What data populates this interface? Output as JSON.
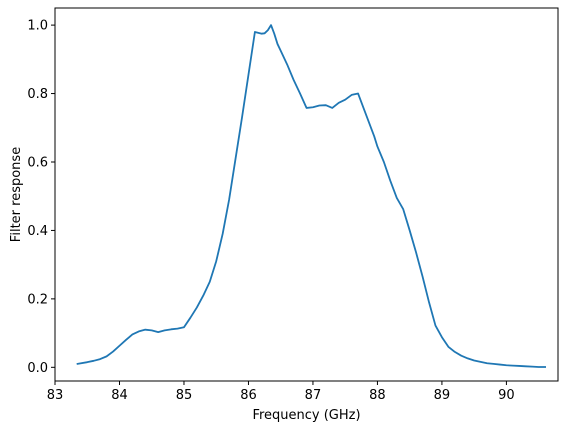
{
  "chart_data": {
    "type": "line",
    "title": "",
    "xlabel": "Frequency (GHz)",
    "ylabel": "Filter response",
    "xlim": [
      83.0,
      90.8
    ],
    "ylim": [
      -0.04,
      1.05
    ],
    "xticks": [
      83,
      84,
      85,
      86,
      87,
      88,
      89,
      90
    ],
    "xtick_labels": [
      "83",
      "84",
      "85",
      "86",
      "87",
      "88",
      "89",
      "90"
    ],
    "yticks": [
      0.0,
      0.2,
      0.4,
      0.6,
      0.8,
      1.0
    ],
    "ytick_labels": [
      "0.0",
      "0.2",
      "0.4",
      "0.6",
      "0.8",
      "1.0"
    ],
    "grid": false,
    "series": [
      {
        "color": "#1f77b4",
        "x": [
          83.35,
          83.5,
          83.6,
          83.7,
          83.8,
          83.9,
          84.0,
          84.1,
          84.2,
          84.3,
          84.4,
          84.5,
          84.6,
          84.7,
          84.8,
          84.9,
          85.0,
          85.1,
          85.2,
          85.3,
          85.4,
          85.5,
          85.6,
          85.7,
          85.8,
          85.9,
          86.0,
          86.1,
          86.2,
          86.25,
          86.3,
          86.35,
          86.4,
          86.45,
          86.5,
          86.6,
          86.7,
          86.8,
          86.9,
          87.0,
          87.1,
          87.2,
          87.3,
          87.4,
          87.5,
          87.6,
          87.7,
          87.8,
          87.9,
          87.95,
          88.0,
          88.1,
          88.2,
          88.3,
          88.4,
          88.5,
          88.6,
          88.7,
          88.8,
          88.9,
          89.0,
          89.1,
          89.2,
          89.3,
          89.4,
          89.5,
          89.6,
          89.7,
          89.8,
          89.9,
          90.0,
          90.1,
          90.2,
          90.3,
          90.4,
          90.5,
          90.6
        ],
        "y": [
          0.01,
          0.015,
          0.019,
          0.024,
          0.032,
          0.046,
          0.063,
          0.08,
          0.096,
          0.105,
          0.11,
          0.108,
          0.103,
          0.108,
          0.111,
          0.113,
          0.117,
          0.145,
          0.175,
          0.21,
          0.25,
          0.31,
          0.39,
          0.49,
          0.61,
          0.73,
          0.855,
          0.98,
          0.975,
          0.976,
          0.985,
          1.0,
          0.975,
          0.945,
          0.925,
          0.885,
          0.84,
          0.8,
          0.758,
          0.76,
          0.765,
          0.766,
          0.758,
          0.773,
          0.782,
          0.796,
          0.8,
          0.75,
          0.7,
          0.675,
          0.645,
          0.6,
          0.545,
          0.495,
          0.462,
          0.4,
          0.335,
          0.265,
          0.19,
          0.122,
          0.088,
          0.06,
          0.045,
          0.034,
          0.026,
          0.02,
          0.016,
          0.012,
          0.01,
          0.008,
          0.006,
          0.005,
          0.004,
          0.003,
          0.002,
          0.001,
          0.001
        ]
      }
    ]
  }
}
